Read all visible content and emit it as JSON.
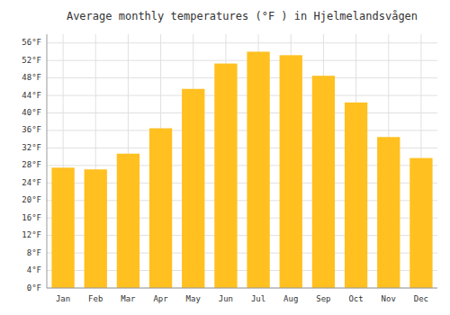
{
  "chart_data": {
    "type": "bar",
    "title": "Average monthly temperatures (°F ) in Hjelmelandsvågen",
    "categories": [
      "Jan",
      "Feb",
      "Mar",
      "Apr",
      "May",
      "Jun",
      "Jul",
      "Aug",
      "Sep",
      "Oct",
      "Nov",
      "Dec"
    ],
    "values": [
      27.5,
      27.1,
      30.7,
      36.5,
      45.5,
      51.3,
      54.0,
      53.2,
      48.5,
      42.4,
      34.5,
      29.7
    ],
    "color": "#FFC020",
    "ylim": [
      0,
      58
    ],
    "yticks": [
      {
        "value": 0,
        "label": "0°F"
      },
      {
        "value": 4,
        "label": "4°F"
      },
      {
        "value": 8,
        "label": "8°F"
      },
      {
        "value": 12,
        "label": "12°F"
      },
      {
        "value": 16,
        "label": "16°F"
      },
      {
        "value": 20,
        "label": "20°F"
      },
      {
        "value": 24,
        "label": "24°F"
      },
      {
        "value": 28,
        "label": "28°F"
      },
      {
        "value": 32,
        "label": "32°F"
      },
      {
        "value": 36,
        "label": "36°F"
      },
      {
        "value": 40,
        "label": "40°F"
      },
      {
        "value": 44,
        "label": "44°F"
      },
      {
        "value": 48,
        "label": "48°F"
      },
      {
        "value": 52,
        "label": "52°F"
      },
      {
        "value": 56,
        "label": "56°F"
      }
    ],
    "grid": true
  }
}
